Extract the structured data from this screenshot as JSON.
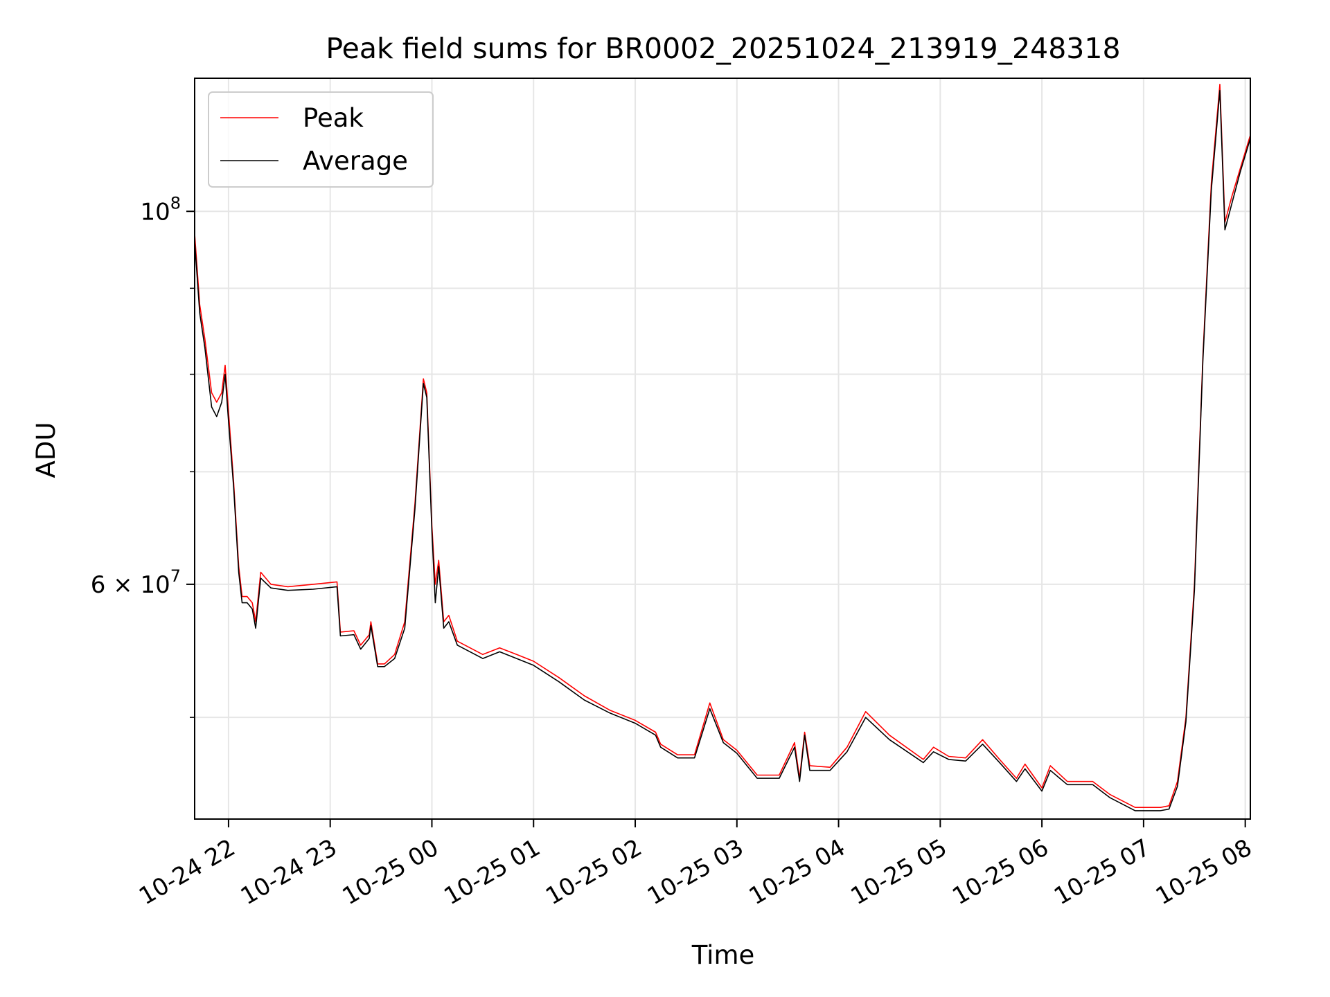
{
  "chart_data": {
    "type": "line",
    "title": "Peak field sums for BR0002_20251024_213919_248318",
    "xlabel": "Time",
    "ylabel": "ADU",
    "yscale": "log",
    "xlim": [
      "2025-10-24 21:40",
      "2025-10-25 08:03"
    ],
    "ylim": [
      43500000,
      120000000
    ],
    "grid": true,
    "legend": {
      "position": "top-left",
      "entries": [
        "Peak",
        "Average"
      ]
    },
    "colors": {
      "Peak": "#ff0000",
      "Average": "#000000"
    },
    "x_ticks": [
      {
        "t": "2025-10-24 22:00",
        "label": "10-24 22"
      },
      {
        "t": "2025-10-24 23:00",
        "label": "10-24 23"
      },
      {
        "t": "2025-10-25 00:00",
        "label": "10-25 00"
      },
      {
        "t": "2025-10-25 01:00",
        "label": "10-25 01"
      },
      {
        "t": "2025-10-25 02:00",
        "label": "10-25 02"
      },
      {
        "t": "2025-10-25 03:00",
        "label": "10-25 03"
      },
      {
        "t": "2025-10-25 04:00",
        "label": "10-25 04"
      },
      {
        "t": "2025-10-25 05:00",
        "label": "10-25 05"
      },
      {
        "t": "2025-10-25 06:00",
        "label": "10-25 06"
      },
      {
        "t": "2025-10-25 07:00",
        "label": "10-25 07"
      },
      {
        "t": "2025-10-25 08:00",
        "label": "10-25 08"
      }
    ],
    "y_ticks_labeled": [
      {
        "v": 100000000,
        "base": "10",
        "exp": "8"
      },
      {
        "v": 60000000,
        "base": "6 × 10",
        "exp": "7"
      }
    ],
    "y_ticks_minor": [
      50000000,
      70000000,
      80000000,
      90000000
    ],
    "series": [
      {
        "name": "Peak",
        "points": [
          [
            "2025-10-24 21:40",
            97000000
          ],
          [
            "2025-10-24 21:43",
            88000000
          ],
          [
            "2025-10-24 21:46",
            84000000
          ],
          [
            "2025-10-24 21:50",
            78000000
          ],
          [
            "2025-10-24 21:53",
            77000000
          ],
          [
            "2025-10-24 21:56",
            78000000
          ],
          [
            "2025-10-24 21:58",
            81000000
          ],
          [
            "2025-10-24 22:00",
            76000000
          ],
          [
            "2025-10-24 22:03",
            69000000
          ],
          [
            "2025-10-24 22:06",
            61500000
          ],
          [
            "2025-10-24 22:08",
            59000000
          ],
          [
            "2025-10-24 22:11",
            59000000
          ],
          [
            "2025-10-24 22:14",
            58500000
          ],
          [
            "2025-10-24 22:16",
            57000000
          ],
          [
            "2025-10-24 22:19",
            61000000
          ],
          [
            "2025-10-24 22:25",
            60000000
          ],
          [
            "2025-10-24 22:35",
            59800000
          ],
          [
            "2025-10-24 22:50",
            60000000
          ],
          [
            "2025-10-24 23:04",
            60200000
          ],
          [
            "2025-10-24 23:06",
            56200000
          ],
          [
            "2025-10-24 23:14",
            56300000
          ],
          [
            "2025-10-24 23:18",
            55200000
          ],
          [
            "2025-10-24 23:23",
            56000000
          ],
          [
            "2025-10-24 23:24",
            57000000
          ],
          [
            "2025-10-24 23:28",
            53800000
          ],
          [
            "2025-10-24 23:32",
            53800000
          ],
          [
            "2025-10-24 23:38",
            54500000
          ],
          [
            "2025-10-24 23:44",
            57000000
          ],
          [
            "2025-10-24 23:50",
            67000000
          ],
          [
            "2025-10-24 23:55",
            79500000
          ],
          [
            "2025-10-24 23:57",
            78000000
          ],
          [
            "2025-10-25 00:00",
            65000000
          ],
          [
            "2025-10-25 00:02",
            60000000
          ],
          [
            "2025-10-25 00:04",
            62000000
          ],
          [
            "2025-10-25 00:07",
            57000000
          ],
          [
            "2025-10-25 00:10",
            57500000
          ],
          [
            "2025-10-25 00:15",
            55500000
          ],
          [
            "2025-10-25 00:30",
            54500000
          ],
          [
            "2025-10-25 00:40",
            55000000
          ],
          [
            "2025-10-25 00:50",
            54500000
          ],
          [
            "2025-10-25 01:00",
            54000000
          ],
          [
            "2025-10-25 01:15",
            52800000
          ],
          [
            "2025-10-25 01:30",
            51500000
          ],
          [
            "2025-10-25 01:45",
            50500000
          ],
          [
            "2025-10-25 02:00",
            49800000
          ],
          [
            "2025-10-25 02:12",
            49000000
          ],
          [
            "2025-10-25 02:15",
            48200000
          ],
          [
            "2025-10-25 02:25",
            47500000
          ],
          [
            "2025-10-25 02:35",
            47500000
          ],
          [
            "2025-10-25 02:44",
            51000000
          ],
          [
            "2025-10-25 02:52",
            48500000
          ],
          [
            "2025-10-25 03:00",
            47800000
          ],
          [
            "2025-10-25 03:12",
            46200000
          ],
          [
            "2025-10-25 03:25",
            46200000
          ],
          [
            "2025-10-25 03:34",
            48300000
          ],
          [
            "2025-10-25 03:37",
            46000000
          ],
          [
            "2025-10-25 03:40",
            49000000
          ],
          [
            "2025-10-25 03:43",
            46800000
          ],
          [
            "2025-10-25 03:55",
            46700000
          ],
          [
            "2025-10-25 04:05",
            48000000
          ],
          [
            "2025-10-25 04:16",
            50400000
          ],
          [
            "2025-10-25 04:30",
            48800000
          ],
          [
            "2025-10-25 04:50",
            47200000
          ],
          [
            "2025-10-25 04:56",
            48000000
          ],
          [
            "2025-10-25 05:05",
            47400000
          ],
          [
            "2025-10-25 05:15",
            47300000
          ],
          [
            "2025-10-25 05:25",
            48500000
          ],
          [
            "2025-10-25 05:35",
            47200000
          ],
          [
            "2025-10-25 05:45",
            46000000
          ],
          [
            "2025-10-25 05:50",
            46900000
          ],
          [
            "2025-10-25 06:00",
            45400000
          ],
          [
            "2025-10-25 06:05",
            46800000
          ],
          [
            "2025-10-25 06:15",
            45800000
          ],
          [
            "2025-10-25 06:30",
            45800000
          ],
          [
            "2025-10-25 06:40",
            45000000
          ],
          [
            "2025-10-25 06:55",
            44200000
          ],
          [
            "2025-10-25 07:10",
            44200000
          ],
          [
            "2025-10-25 07:15",
            44300000
          ],
          [
            "2025-10-25 07:20",
            45800000
          ],
          [
            "2025-10-25 07:25",
            50000000
          ],
          [
            "2025-10-25 07:30",
            60000000
          ],
          [
            "2025-10-25 07:35",
            82000000
          ],
          [
            "2025-10-25 07:40",
            104000000
          ],
          [
            "2025-10-25 07:45",
            119000000
          ],
          [
            "2025-10-25 07:48",
            98500000
          ],
          [
            "2025-10-25 07:52",
            102000000
          ],
          [
            "2025-10-25 07:57",
            106000000
          ],
          [
            "2025-10-25 08:03",
            111000000
          ]
        ]
      },
      {
        "name": "Average",
        "points": [
          [
            "2025-10-24 21:40",
            96000000
          ],
          [
            "2025-10-24 21:43",
            87000000
          ],
          [
            "2025-10-24 21:46",
            83000000
          ],
          [
            "2025-10-24 21:50",
            76500000
          ],
          [
            "2025-10-24 21:53",
            75500000
          ],
          [
            "2025-10-24 21:56",
            77000000
          ],
          [
            "2025-10-24 21:58",
            80000000
          ],
          [
            "2025-10-24 22:00",
            75000000
          ],
          [
            "2025-10-24 22:03",
            68500000
          ],
          [
            "2025-10-24 22:06",
            61000000
          ],
          [
            "2025-10-24 22:08",
            58500000
          ],
          [
            "2025-10-24 22:11",
            58500000
          ],
          [
            "2025-10-24 22:14",
            58000000
          ],
          [
            "2025-10-24 22:16",
            56500000
          ],
          [
            "2025-10-24 22:19",
            60500000
          ],
          [
            "2025-10-24 22:25",
            59700000
          ],
          [
            "2025-10-24 22:35",
            59500000
          ],
          [
            "2025-10-24 22:50",
            59600000
          ],
          [
            "2025-10-24 23:04",
            59800000
          ],
          [
            "2025-10-24 23:06",
            55900000
          ],
          [
            "2025-10-24 23:14",
            56000000
          ],
          [
            "2025-10-24 23:18",
            54900000
          ],
          [
            "2025-10-24 23:23",
            55700000
          ],
          [
            "2025-10-24 23:24",
            56700000
          ],
          [
            "2025-10-24 23:28",
            53600000
          ],
          [
            "2025-10-24 23:32",
            53600000
          ],
          [
            "2025-10-24 23:38",
            54200000
          ],
          [
            "2025-10-24 23:44",
            56500000
          ],
          [
            "2025-10-24 23:50",
            66500000
          ],
          [
            "2025-10-24 23:55",
            79000000
          ],
          [
            "2025-10-24 23:57",
            77500000
          ],
          [
            "2025-10-25 00:00",
            64500000
          ],
          [
            "2025-10-25 00:02",
            58500000
          ],
          [
            "2025-10-25 00:04",
            61500000
          ],
          [
            "2025-10-25 00:07",
            56500000
          ],
          [
            "2025-10-25 00:10",
            57000000
          ],
          [
            "2025-10-25 00:15",
            55200000
          ],
          [
            "2025-10-25 00:30",
            54200000
          ],
          [
            "2025-10-25 00:40",
            54700000
          ],
          [
            "2025-10-25 00:50",
            54200000
          ],
          [
            "2025-10-25 01:00",
            53700000
          ],
          [
            "2025-10-25 01:15",
            52500000
          ],
          [
            "2025-10-25 01:30",
            51200000
          ],
          [
            "2025-10-25 01:45",
            50300000
          ],
          [
            "2025-10-25 02:00",
            49600000
          ],
          [
            "2025-10-25 02:12",
            48800000
          ],
          [
            "2025-10-25 02:15",
            48000000
          ],
          [
            "2025-10-25 02:25",
            47300000
          ],
          [
            "2025-10-25 02:35",
            47300000
          ],
          [
            "2025-10-25 02:44",
            50600000
          ],
          [
            "2025-10-25 02:52",
            48300000
          ],
          [
            "2025-10-25 03:00",
            47600000
          ],
          [
            "2025-10-25 03:12",
            46000000
          ],
          [
            "2025-10-25 03:25",
            46000000
          ],
          [
            "2025-10-25 03:34",
            48000000
          ],
          [
            "2025-10-25 03:37",
            45800000
          ],
          [
            "2025-10-25 03:40",
            48800000
          ],
          [
            "2025-10-25 03:43",
            46500000
          ],
          [
            "2025-10-25 03:55",
            46500000
          ],
          [
            "2025-10-25 04:05",
            47700000
          ],
          [
            "2025-10-25 04:16",
            50000000
          ],
          [
            "2025-10-25 04:30",
            48500000
          ],
          [
            "2025-10-25 04:50",
            47000000
          ],
          [
            "2025-10-25 04:56",
            47700000
          ],
          [
            "2025-10-25 05:05",
            47200000
          ],
          [
            "2025-10-25 05:15",
            47100000
          ],
          [
            "2025-10-25 05:25",
            48200000
          ],
          [
            "2025-10-25 05:35",
            47000000
          ],
          [
            "2025-10-25 05:45",
            45800000
          ],
          [
            "2025-10-25 05:50",
            46600000
          ],
          [
            "2025-10-25 06:00",
            45200000
          ],
          [
            "2025-10-25 06:05",
            46500000
          ],
          [
            "2025-10-25 06:15",
            45600000
          ],
          [
            "2025-10-25 06:30",
            45600000
          ],
          [
            "2025-10-25 06:40",
            44800000
          ],
          [
            "2025-10-25 06:55",
            44000000
          ],
          [
            "2025-10-25 07:10",
            44000000
          ],
          [
            "2025-10-25 07:15",
            44100000
          ],
          [
            "2025-10-25 07:20",
            45500000
          ],
          [
            "2025-10-25 07:25",
            49700000
          ],
          [
            "2025-10-25 07:30",
            59500000
          ],
          [
            "2025-10-25 07:35",
            81500000
          ],
          [
            "2025-10-25 07:40",
            103000000
          ],
          [
            "2025-10-25 07:45",
            118000000
          ],
          [
            "2025-10-25 07:48",
            97500000
          ],
          [
            "2025-10-25 07:52",
            101000000
          ],
          [
            "2025-10-25 07:57",
            105500000
          ],
          [
            "2025-10-25 08:03",
            110500000
          ]
        ]
      }
    ]
  }
}
